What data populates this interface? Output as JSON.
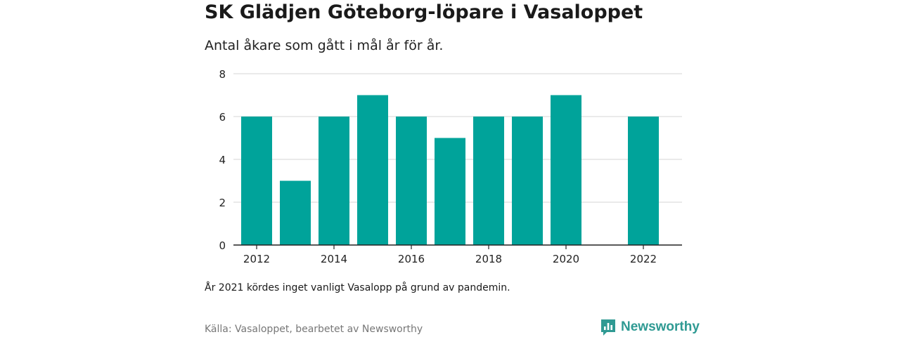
{
  "title": "SK Glädjen Göteborg-löpare i Vasaloppet",
  "subtitle": "Antal åkare som gått i mål år för år.",
  "note": "År 2021 kördes inget vanligt Vasalopp på grund av pandemin.",
  "source": "Källa: Vasaloppet, bearbetet av Newsworthy",
  "brand": {
    "name": "Newsworthy",
    "icon": "newsworthy-logo-icon",
    "color": "#2f9a93"
  },
  "colors": {
    "bar": "#00a39a",
    "grid": "#dddddd",
    "axis": "#222222"
  },
  "chart_data": {
    "type": "bar",
    "x": [
      2012,
      2013,
      2014,
      2015,
      2016,
      2017,
      2018,
      2019,
      2020,
      2022
    ],
    "values": [
      6,
      3,
      6,
      7,
      6,
      5,
      6,
      6,
      7,
      6
    ],
    "xticks": [
      "2012",
      "2014",
      "2016",
      "2018",
      "2020",
      "2022"
    ],
    "yticks": [
      "0",
      "2",
      "4",
      "6",
      "8"
    ],
    "xlim": [
      2011.4,
      2023
    ],
    "ylim": [
      0,
      8
    ],
    "grid": true,
    "legend": "none"
  }
}
